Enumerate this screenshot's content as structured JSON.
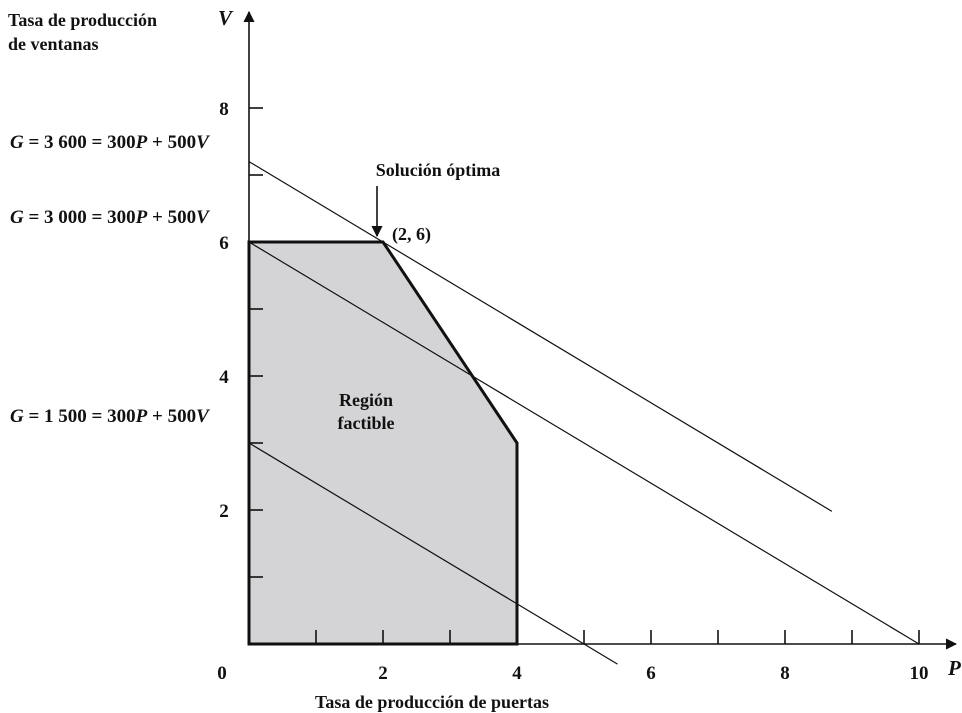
{
  "chart_data": {
    "type": "line",
    "xlabel": "Tasa de producción de puertas",
    "ylabel_lines": [
      "Tasa de producción",
      "de ventanas"
    ],
    "x_axis_symbol": "P",
    "y_axis_symbol": "V",
    "xlim": [
      0,
      10
    ],
    "ylim": [
      0,
      8
    ],
    "x_ticks": [
      0,
      1,
      2,
      3,
      4,
      5,
      6,
      7,
      8,
      9,
      10
    ],
    "x_tick_labels": [
      {
        "value": 0,
        "label": "0"
      },
      {
        "value": 2,
        "label": "2"
      },
      {
        "value": 4,
        "label": "4"
      },
      {
        "value": 6,
        "label": "6"
      },
      {
        "value": 8,
        "label": "8"
      },
      {
        "value": 10,
        "label": "10"
      }
    ],
    "y_ticks": [
      1,
      2,
      3,
      4,
      5,
      6,
      7,
      8
    ],
    "y_tick_labels": [
      {
        "value": 2,
        "label": "2"
      },
      {
        "value": 4,
        "label": "4"
      },
      {
        "value": 6,
        "label": "6"
      },
      {
        "value": 8,
        "label": "8"
      }
    ],
    "feasible_region": {
      "label_lines": [
        "Región",
        "factible"
      ],
      "vertices": [
        [
          0,
          0
        ],
        [
          0,
          6
        ],
        [
          2,
          6
        ],
        [
          4,
          3
        ],
        [
          4,
          0
        ]
      ],
      "fill": "#d4d4d6"
    },
    "objective_lines": [
      {
        "label": {
          "g": "G",
          "rest": " = 3 600 = 300",
          "p": "P",
          "plus": " + 500",
          "v": "V"
        },
        "x": [
          0,
          8.7
        ],
        "y": [
          7.2,
          1.98
        ]
      },
      {
        "label": {
          "g": "G",
          "rest": " = 3 000 = 300",
          "p": "P",
          "plus": " + 500",
          "v": "V"
        },
        "x": [
          0,
          10
        ],
        "y": [
          6,
          0
        ]
      },
      {
        "label": {
          "g": "G",
          "rest": " = 1 500 = 300",
          "p": "P",
          "plus": " + 500",
          "v": "V"
        },
        "x": [
          0,
          5.5
        ],
        "y": [
          3,
          -0.3
        ]
      }
    ],
    "annotations": {
      "optimal_title": "Solución óptima",
      "optimal_point_label": "(2, 6)",
      "optimal_point": [
        2,
        6
      ]
    },
    "grid": false,
    "legend": "none"
  }
}
